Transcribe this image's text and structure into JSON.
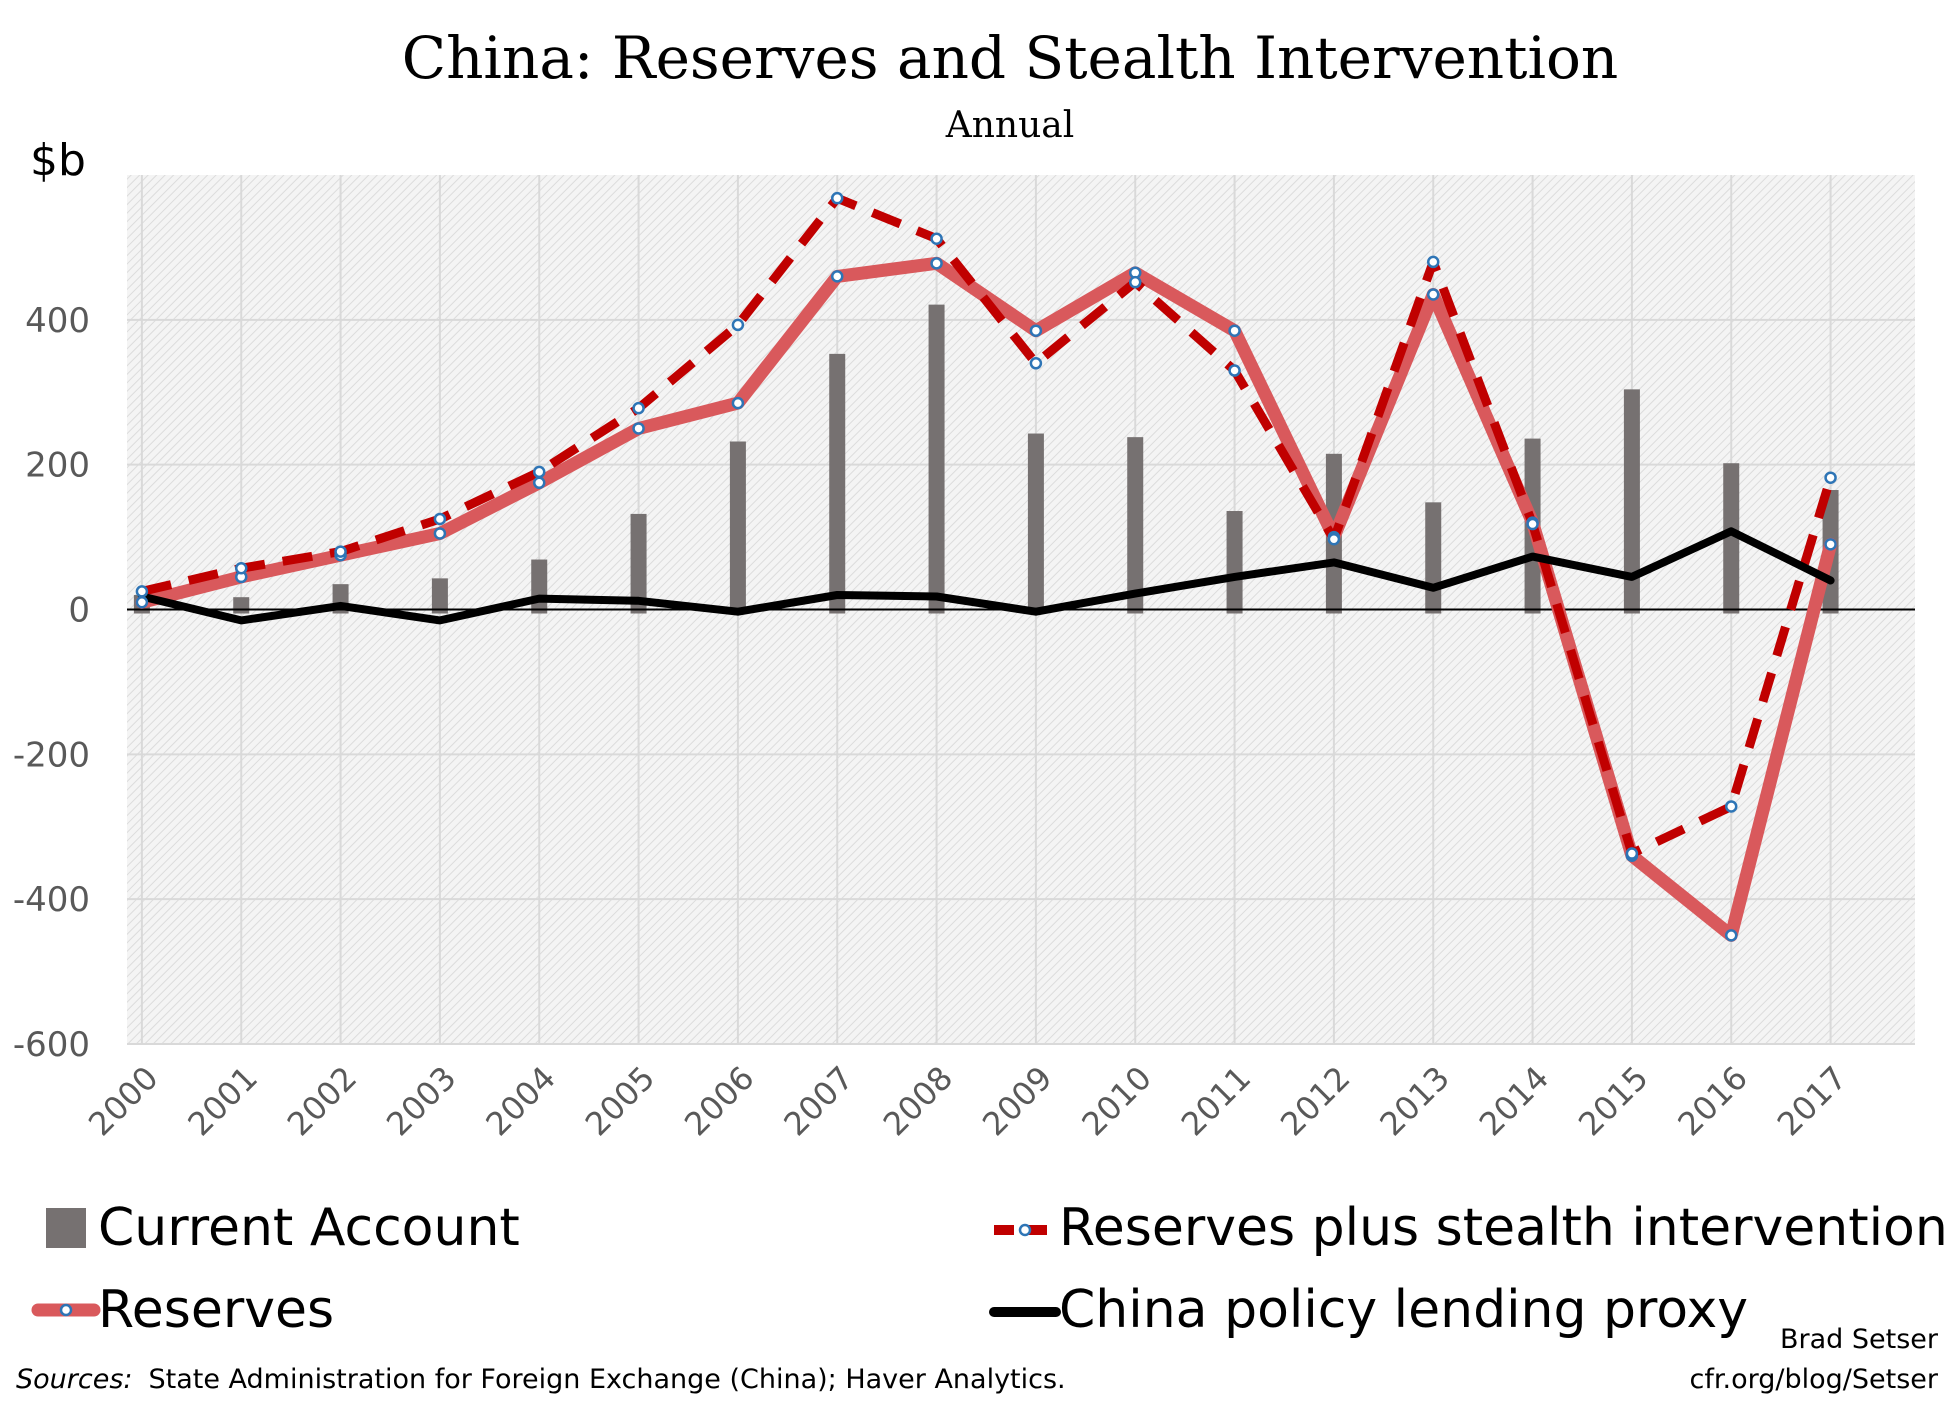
{
  "chart_data": {
    "type": "bar",
    "title": "China: Reserves and Stealth Intervention",
    "subtitle": "Annual",
    "ylabel": "$b",
    "ylim": [
      -600,
      600
    ],
    "yticks": [
      400,
      200,
      0,
      -200,
      -400,
      -600
    ],
    "ytick_labels": [
      "400",
      "200",
      "0",
      "-200",
      "-400",
      "-600"
    ],
    "grid": true,
    "legend_placement": "bottom",
    "categories": [
      "2000",
      "2001",
      "2002",
      "2003",
      "2004",
      "2005",
      "2006",
      "2007",
      "2008",
      "2009",
      "2010",
      "2011",
      "2012",
      "2013",
      "2014",
      "2015",
      "2016",
      "2017"
    ],
    "series": [
      {
        "name": "Current Account",
        "kind": "bar",
        "color": "#767171",
        "values": [
          20,
          17,
          35,
          43,
          69,
          132,
          232,
          353,
          421,
          243,
          238,
          136,
          215,
          148,
          236,
          304,
          202,
          165
        ]
      },
      {
        "name": "Reserves",
        "kind": "line",
        "color": "#d9595c",
        "values": [
          10,
          45,
          75,
          105,
          175,
          250,
          285,
          460,
          478,
          385,
          465,
          385,
          100,
          435,
          120,
          -340,
          -450,
          90
        ]
      },
      {
        "name": "Reserves plus stealth intervention",
        "kind": "dashed-line",
        "color": "#c00000",
        "values": [
          25,
          57,
          80,
          125,
          190,
          278,
          393,
          568,
          512,
          340,
          452,
          330,
          97,
          480,
          118,
          -337,
          -272,
          182
        ]
      },
      {
        "name": "China policy lending proxy",
        "kind": "line",
        "color": "#000000",
        "values": [
          18,
          -15,
          5,
          -15,
          15,
          12,
          -3,
          20,
          18,
          -3,
          22,
          45,
          65,
          30,
          73,
          45,
          108,
          40
        ]
      }
    ],
    "source_label": "Sources:",
    "source": "State Administration for Foreign Exchange (China); Haver Analytics.",
    "credit_name": "Brad Setser",
    "credit_url": "cfr.org/blog/Setser"
  }
}
